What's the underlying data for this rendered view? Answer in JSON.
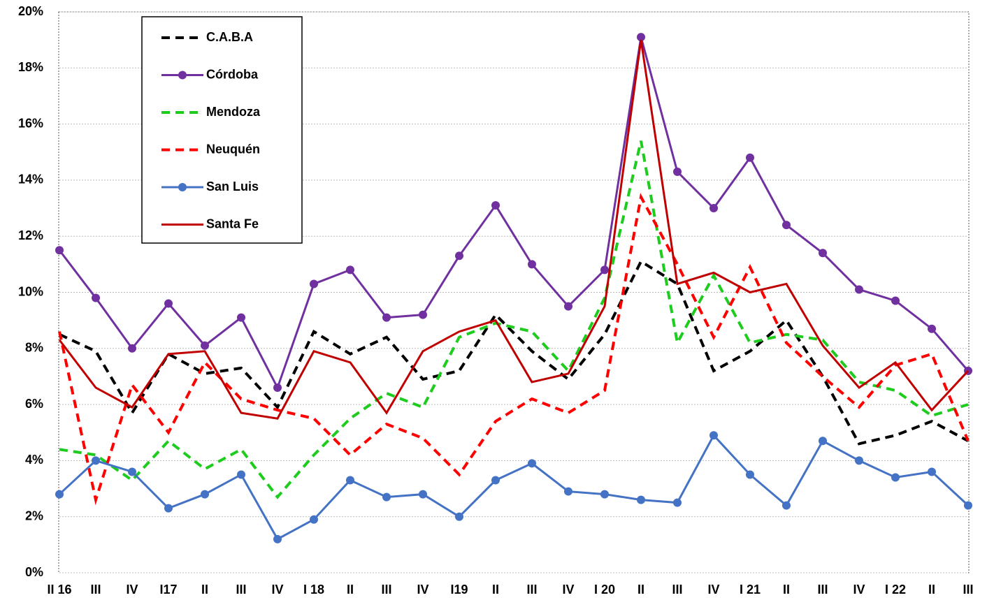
{
  "chart_data": {
    "type": "line",
    "categories": [
      "II 16",
      "III",
      "IV",
      "I17",
      "II",
      "III",
      "IV",
      "I 18",
      "II",
      "III",
      "IV",
      "I19",
      "II",
      "III",
      "IV",
      "I 20",
      "II",
      "III",
      "IV",
      "I 21",
      "II",
      "III",
      "IV",
      "I 22",
      "II",
      "III"
    ],
    "series": [
      {
        "name": "C.A.B.A",
        "color": "#000000",
        "dashed": true,
        "markers": false,
        "values": [
          8.5,
          7.9,
          5.7,
          7.8,
          7.1,
          7.3,
          5.9,
          8.6,
          7.8,
          8.4,
          6.9,
          7.2,
          9.2,
          7.9,
          6.9,
          8.5,
          11.1,
          10.3,
          7.2,
          7.9,
          9.0,
          7.0,
          4.6,
          4.9,
          5.4,
          4.7
        ]
      },
      {
        "name": "Córdoba",
        "color": "#7030a0",
        "dashed": false,
        "markers": true,
        "values": [
          11.5,
          9.8,
          8.0,
          9.6,
          8.1,
          9.1,
          6.6,
          10.3,
          10.8,
          9.1,
          9.2,
          11.3,
          13.1,
          11.0,
          9.5,
          10.8,
          19.1,
          14.3,
          13.0,
          14.8,
          12.4,
          11.4,
          10.1,
          9.7,
          8.7,
          7.2
        ]
      },
      {
        "name": "Mendoza",
        "color": "#1ecc1e",
        "dashed": true,
        "markers": false,
        "values": [
          4.4,
          4.2,
          3.3,
          4.7,
          3.7,
          4.4,
          2.7,
          4.2,
          5.5,
          6.4,
          5.9,
          8.4,
          8.9,
          8.6,
          7.2,
          9.8,
          15.4,
          8.2,
          10.6,
          8.2,
          8.5,
          8.3,
          6.8,
          6.5,
          5.6,
          6.0
        ]
      },
      {
        "name": "Neuquén",
        "color": "#ff0000",
        "dashed": true,
        "markers": false,
        "values": [
          8.6,
          2.6,
          6.7,
          5.0,
          7.5,
          6.2,
          5.8,
          5.5,
          4.2,
          5.3,
          4.8,
          3.5,
          5.4,
          6.2,
          5.7,
          6.5,
          13.4,
          11.0,
          8.4,
          10.9,
          8.2,
          7.0,
          5.9,
          7.4,
          7.8,
          4.7
        ]
      },
      {
        "name": "San Luis",
        "color": "#4472c4",
        "dashed": false,
        "markers": true,
        "values": [
          2.8,
          4.0,
          3.6,
          2.3,
          2.8,
          3.5,
          1.2,
          1.9,
          3.3,
          2.7,
          2.8,
          2.0,
          3.3,
          3.9,
          2.9,
          2.8,
          2.6,
          2.5,
          4.9,
          3.5,
          2.4,
          4.7,
          4.0,
          3.4,
          3.6,
          2.4
        ]
      },
      {
        "name": "Santa Fe",
        "color": "#c00000",
        "dashed": false,
        "markers": false,
        "values": [
          8.3,
          6.6,
          5.9,
          7.8,
          7.9,
          5.7,
          5.5,
          7.9,
          7.5,
          5.7,
          7.9,
          8.6,
          9.0,
          6.8,
          7.1,
          9.5,
          19.0,
          10.3,
          10.7,
          10.0,
          10.3,
          8.1,
          6.6,
          7.5,
          5.8,
          7.2
        ]
      }
    ],
    "ylim": [
      0,
      20
    ],
    "yticks": [
      {
        "value": 0,
        "label": "0%"
      },
      {
        "value": 2,
        "label": "2%"
      },
      {
        "value": 4,
        "label": "4%"
      },
      {
        "value": 6,
        "label": "6%"
      },
      {
        "value": 8,
        "label": "8%"
      },
      {
        "value": 10,
        "label": "10%"
      },
      {
        "value": 12,
        "label": "12%"
      },
      {
        "value": 14,
        "label": "14%"
      },
      {
        "value": 16,
        "label": "16%"
      },
      {
        "value": 18,
        "label": "18%"
      },
      {
        "value": 20,
        "label": "20%"
      }
    ],
    "grid": true,
    "legend": "upper left"
  }
}
